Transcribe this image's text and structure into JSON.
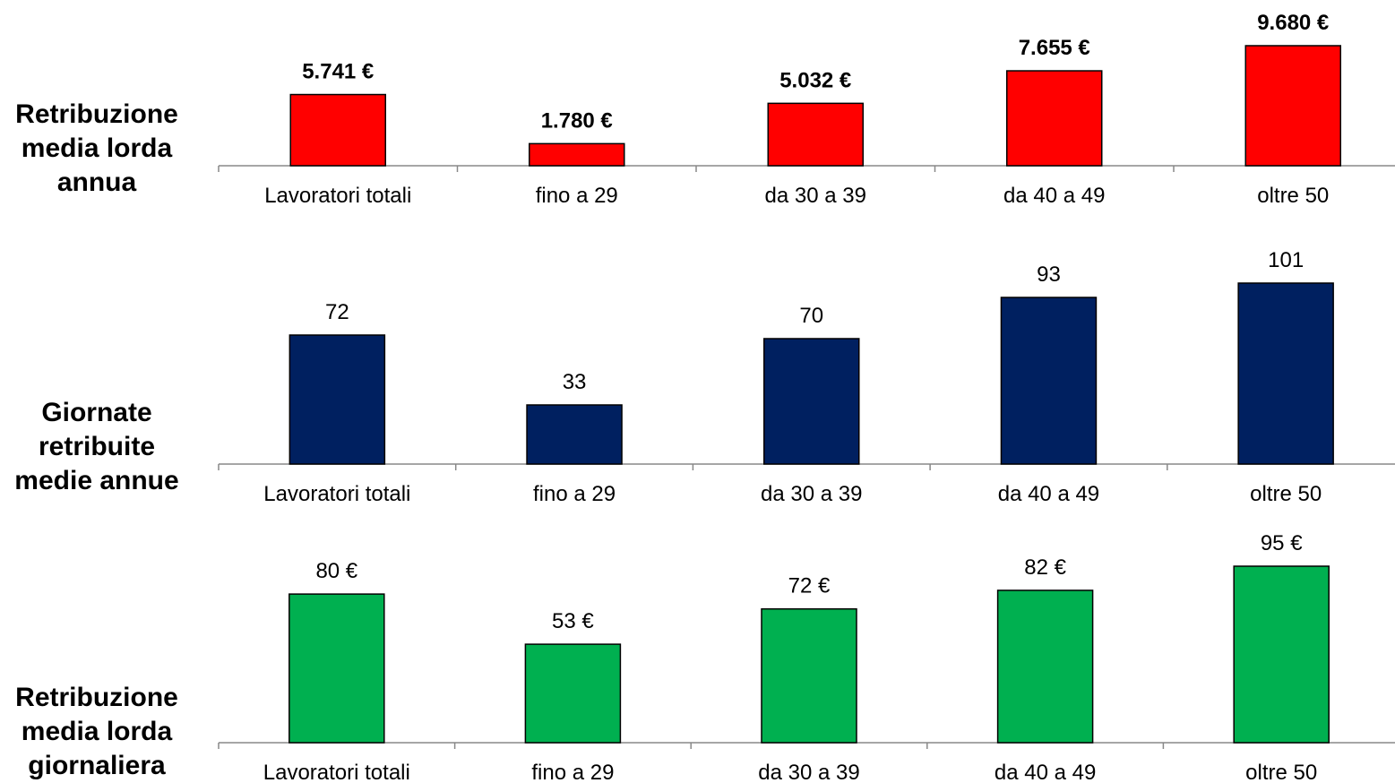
{
  "chart_data": [
    {
      "type": "bar",
      "title": "Retribuzione media lorda annua",
      "categories": [
        "Lavoratori totali",
        "fino a 29",
        "da 30 a 39",
        "da 40 a 49",
        "oltre 50"
      ],
      "values": [
        5741,
        1780,
        5032,
        7655,
        9680
      ],
      "value_labels": [
        "5.741 €",
        "1.780 €",
        "5.032 €",
        "7.655 €",
        "9.680 €"
      ],
      "color": "#ff0000"
    },
    {
      "type": "bar",
      "title": "Giornate retribuite medie annue",
      "categories": [
        "Lavoratori totali",
        "fino a 29",
        "da 30 a 39",
        "da 40 a 49",
        "oltre 50"
      ],
      "values": [
        72,
        33,
        70,
        93,
        101
      ],
      "color": "#002060"
    },
    {
      "type": "bar",
      "title": "Retribuzione media lorda giornaliera",
      "categories": [
        "Lavoratori totali",
        "fino a 29",
        "da 30 a 39",
        "da 40 a 49",
        "oltre 50"
      ],
      "values": [
        80,
        53,
        72,
        82,
        95
      ],
      "value_labels": [
        "80 €",
        "53 €",
        "72 €",
        "82 €",
        "95 €"
      ],
      "color": "#00b050"
    }
  ]
}
